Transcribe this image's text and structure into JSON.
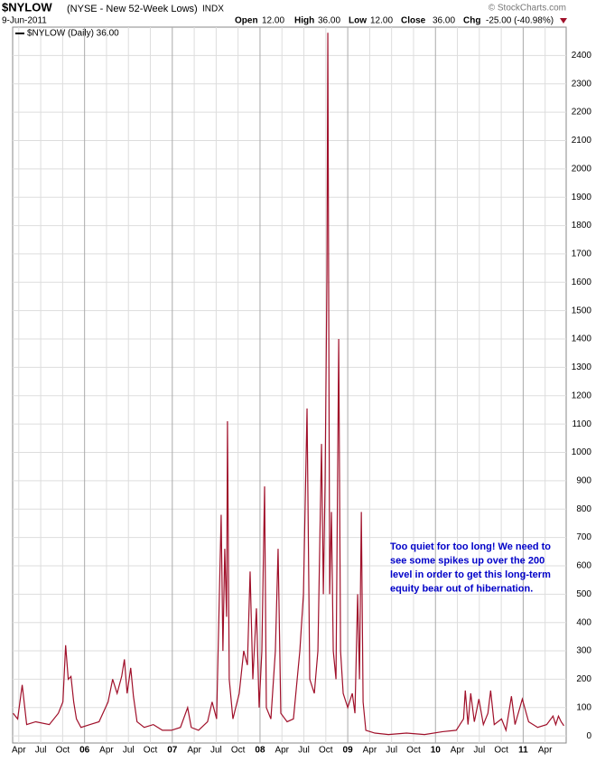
{
  "header": {
    "symbol": "$NYLOW",
    "description": "(NYSE - New 52-Week Lows)",
    "exchange": "INDX",
    "date": "9-Jun-2011",
    "open_label": "Open",
    "open": "12.00",
    "high_label": "High",
    "high": "36.00",
    "low_label": "Low",
    "low": "12.00",
    "close_label": "Close",
    "close": "36.00",
    "chg_label": "Chg",
    "chg": "-25.00 (-40.98%)",
    "credit": "© StockCharts.com"
  },
  "chart_data": {
    "type": "line",
    "legend": "$NYLOW (Daily) 36.00",
    "annotation": [
      "Too quiet for too long! We need to",
      "see some spikes up over the 200",
      "level in order to get this long-term",
      "equity bear out of hibernation."
    ],
    "x": [
      2005.186,
      2005.237,
      2005.289,
      2005.34,
      2005.443,
      2005.598,
      2005.701,
      2005.753,
      2005.784,
      2005.814,
      2005.845,
      2005.876,
      2005.907,
      2005.959,
      2006.062,
      2006.165,
      2006.268,
      2006.32,
      2006.371,
      2006.423,
      2006.454,
      2006.485,
      2006.526,
      2006.557,
      2006.598,
      2006.68,
      2006.784,
      2006.887,
      2006.99,
      2007.093,
      2007.175,
      2007.216,
      2007.299,
      2007.402,
      2007.454,
      2007.505,
      2007.557,
      2007.577,
      2007.598,
      2007.619,
      2007.629,
      2007.649,
      2007.691,
      2007.763,
      2007.814,
      2007.856,
      2007.887,
      2007.918,
      2007.959,
      2007.99,
      2008.021,
      2008.052,
      2008.072,
      2008.124,
      2008.175,
      2008.206,
      2008.237,
      2008.309,
      2008.381,
      2008.454,
      2008.495,
      2008.536,
      2008.567,
      2008.619,
      2008.66,
      2008.701,
      2008.722,
      2008.742,
      2008.763,
      2008.773,
      2008.794,
      2008.814,
      2008.835,
      2008.866,
      2008.897,
      2008.918,
      2008.948,
      2009.0,
      2009.052,
      2009.082,
      2009.113,
      2009.134,
      2009.155,
      2009.175,
      2009.206,
      2009.309,
      2009.464,
      2009.67,
      2009.876,
      2010.082,
      2010.237,
      2010.32,
      2010.34,
      2010.371,
      2010.402,
      2010.443,
      2010.495,
      2010.546,
      2010.598,
      2010.629,
      2010.67,
      2010.753,
      2010.804,
      2010.866,
      2010.907,
      2010.99,
      2011.062,
      2011.165,
      2011.268,
      2011.34,
      2011.371,
      2011.402,
      2011.433,
      2011.464
    ],
    "series": [
      {
        "name": "$NYLOW",
        "color": "#a0102a",
        "values": [
          80,
          60,
          180,
          40,
          50,
          40,
          80,
          120,
          320,
          200,
          210,
          120,
          60,
          30,
          40,
          50,
          120,
          200,
          150,
          210,
          270,
          150,
          240,
          140,
          50,
          30,
          40,
          20,
          20,
          30,
          100,
          30,
          20,
          50,
          120,
          60,
          780,
          300,
          660,
          420,
          1110,
          200,
          60,
          150,
          300,
          250,
          580,
          200,
          450,
          100,
          300,
          880,
          100,
          60,
          300,
          660,
          80,
          50,
          60,
          300,
          500,
          1155,
          200,
          150,
          300,
          1030,
          500,
          900,
          1630,
          2480,
          500,
          790,
          300,
          200,
          1400,
          300,
          150,
          100,
          150,
          80,
          500,
          200,
          790,
          120,
          20,
          10,
          5,
          10,
          5,
          15,
          20,
          60,
          160,
          40,
          150,
          50,
          130,
          40,
          80,
          160,
          40,
          60,
          20,
          140,
          40,
          130,
          50,
          30,
          40,
          70,
          40,
          70,
          50,
          36
        ]
      }
    ],
    "xlim": [
      2005.18,
      2011.49
    ],
    "ylim": [
      -25,
      2500
    ],
    "xticks": [
      {
        "value": 2005.25,
        "label": "Apr"
      },
      {
        "value": 2005.5,
        "label": "Jul"
      },
      {
        "value": 2005.75,
        "label": "Oct"
      },
      {
        "value": 2006,
        "label": "06"
      },
      {
        "value": 2006.25,
        "label": "Apr"
      },
      {
        "value": 2006.5,
        "label": "Jul"
      },
      {
        "value": 2006.75,
        "label": "Oct"
      },
      {
        "value": 2007,
        "label": "07"
      },
      {
        "value": 2007.25,
        "label": "Apr"
      },
      {
        "value": 2007.5,
        "label": "Jul"
      },
      {
        "value": 2007.75,
        "label": "Oct"
      },
      {
        "value": 2008,
        "label": "08"
      },
      {
        "value": 2008.25,
        "label": "Apr"
      },
      {
        "value": 2008.5,
        "label": "Jul"
      },
      {
        "value": 2008.75,
        "label": "Oct"
      },
      {
        "value": 2009,
        "label": "09"
      },
      {
        "value": 2009.25,
        "label": "Apr"
      },
      {
        "value": 2009.5,
        "label": "Jul"
      },
      {
        "value": 2009.75,
        "label": "Oct"
      },
      {
        "value": 2010,
        "label": "10"
      },
      {
        "value": 2010.25,
        "label": "Apr"
      },
      {
        "value": 2010.5,
        "label": "Jul"
      },
      {
        "value": 2010.75,
        "label": "Oct"
      },
      {
        "value": 2011,
        "label": "11"
      },
      {
        "value": 2011.25,
        "label": "Apr"
      }
    ],
    "yticks": [
      0,
      100,
      200,
      300,
      400,
      500,
      600,
      700,
      800,
      900,
      1000,
      1100,
      1200,
      1300,
      1400,
      1500,
      1600,
      1700,
      1800,
      1900,
      2000,
      2100,
      2200,
      2300,
      2400
    ],
    "grid": true
  }
}
